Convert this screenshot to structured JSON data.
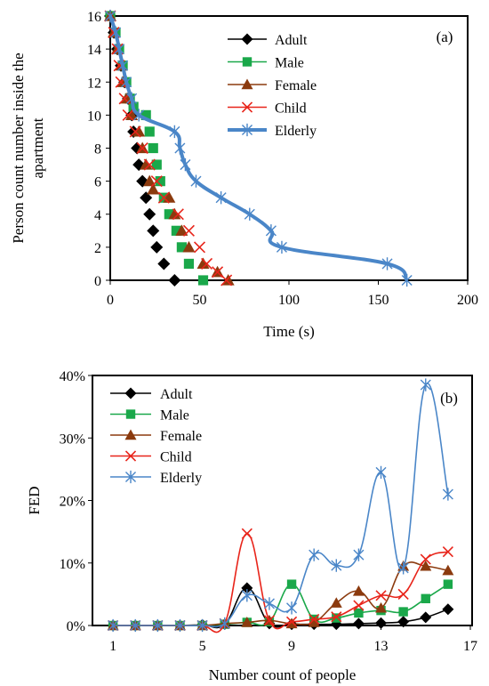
{
  "chart_data": [
    {
      "type": "line",
      "annotation": "(a)",
      "title": "",
      "xlabel": "Time (s)",
      "ylabel_lines": [
        "Person count number inside the",
        "apartment"
      ],
      "xlim": [
        0,
        200
      ],
      "ylim": [
        0,
        16
      ],
      "xticks": [
        0,
        50,
        100,
        150,
        200
      ],
      "yticks": [
        0,
        2,
        4,
        6,
        8,
        10,
        12,
        14,
        16
      ],
      "grid": false,
      "legend_position": "top-center",
      "series": [
        {
          "name": "Adult",
          "color": "#000000",
          "marker": "diamond",
          "line": false,
          "points": [
            [
              0,
              16
            ],
            [
              2,
              15
            ],
            [
              4,
              14
            ],
            [
              6,
              13
            ],
            [
              8,
              12
            ],
            [
              10,
              11
            ],
            [
              12,
              10
            ],
            [
              13,
              9
            ],
            [
              15,
              8
            ],
            [
              16,
              7
            ],
            [
              18,
              6
            ],
            [
              20,
              5
            ],
            [
              22,
              4
            ],
            [
              24,
              3
            ],
            [
              26,
              2
            ],
            [
              30,
              1
            ],
            [
              36,
              0
            ]
          ]
        },
        {
          "name": "Male",
          "color": "#1aa84a",
          "marker": "square",
          "line": false,
          "points": [
            [
              0,
              16
            ],
            [
              3,
              15
            ],
            [
              5,
              14
            ],
            [
              7,
              13
            ],
            [
              9,
              12
            ],
            [
              11,
              11
            ],
            [
              13,
              10.5
            ],
            [
              20,
              10
            ],
            [
              22,
              9
            ],
            [
              24,
              8
            ],
            [
              26,
              7
            ],
            [
              28,
              6
            ],
            [
              30,
              5
            ],
            [
              33,
              4
            ],
            [
              37,
              3
            ],
            [
              40,
              2
            ],
            [
              44,
              1
            ],
            [
              52,
              0
            ]
          ]
        },
        {
          "name": "Female",
          "color": "#8b3a0e",
          "marker": "triangle",
          "line": false,
          "points": [
            [
              0,
              16
            ],
            [
              2,
              15
            ],
            [
              4,
              14
            ],
            [
              6,
              13
            ],
            [
              7,
              12
            ],
            [
              9,
              11
            ],
            [
              12,
              10
            ],
            [
              16,
              9
            ],
            [
              18,
              8
            ],
            [
              20,
              7
            ],
            [
              22,
              6
            ],
            [
              24,
              5.5
            ],
            [
              33,
              5
            ],
            [
              36,
              4
            ],
            [
              40,
              3
            ],
            [
              44,
              2
            ],
            [
              52,
              1
            ],
            [
              60,
              0.5
            ],
            [
              66,
              0
            ]
          ]
        },
        {
          "name": "Child",
          "color": "#e8241a",
          "marker": "x",
          "line": false,
          "points": [
            [
              0,
              16
            ],
            [
              2,
              15
            ],
            [
              4,
              14
            ],
            [
              5,
              13
            ],
            [
              6,
              12
            ],
            [
              8,
              11
            ],
            [
              10,
              10
            ],
            [
              14,
              9
            ],
            [
              18,
              8
            ],
            [
              22,
              7
            ],
            [
              26,
              6
            ],
            [
              30,
              5
            ],
            [
              38,
              4
            ],
            [
              44,
              3
            ],
            [
              50,
              2
            ],
            [
              54,
              1
            ],
            [
              60,
              0.5
            ],
            [
              65,
              0
            ]
          ]
        },
        {
          "name": "Elderly",
          "color": "#4a86c8",
          "marker": "asterisk",
          "line": true,
          "points": [
            [
              0,
              16
            ],
            [
              3,
              15
            ],
            [
              5,
              14
            ],
            [
              7,
              13
            ],
            [
              9,
              12
            ],
            [
              12,
              11
            ],
            [
              16,
              10
            ],
            [
              36,
              9
            ],
            [
              39,
              8
            ],
            [
              42,
              7
            ],
            [
              48,
              6
            ],
            [
              62,
              5
            ],
            [
              78,
              4
            ],
            [
              90,
              3
            ],
            [
              96,
              2
            ],
            [
              155,
              1
            ],
            [
              166,
              0
            ]
          ]
        }
      ]
    },
    {
      "type": "line",
      "annotation": "(b)",
      "title": "",
      "xlabel": "Number count of people",
      "ylabel": "FED",
      "xlim": [
        0,
        17
      ],
      "ylim": [
        0,
        40
      ],
      "xticks": [
        1,
        5,
        9,
        13,
        17
      ],
      "yticks": [
        0,
        10,
        20,
        30,
        40
      ],
      "ytick_labels": [
        "0%",
        "10%",
        "20%",
        "30%",
        "40%"
      ],
      "grid": false,
      "legend_position": "top-left",
      "categories": [
        1,
        2,
        3,
        4,
        5,
        6,
        7,
        8,
        9,
        10,
        11,
        12,
        13,
        14,
        15,
        16
      ],
      "series": [
        {
          "name": "Adult",
          "color": "#000000",
          "marker": "diamond",
          "values": [
            0,
            0,
            0,
            0,
            0.1,
            0.2,
            6.0,
            0.3,
            0.2,
            0.2,
            0.2,
            0.3,
            0.4,
            0.6,
            1.3,
            2.6
          ]
        },
        {
          "name": "Male",
          "color": "#1aa84a",
          "marker": "square",
          "values": [
            0,
            0,
            0,
            0,
            0,
            0.2,
            0.5,
            0.6,
            6.6,
            1.0,
            1.2,
            2.0,
            2.4,
            2.2,
            4.3,
            6.6
          ]
        },
        {
          "name": "Female",
          "color": "#8b3a0e",
          "marker": "triangle",
          "values": [
            0,
            0,
            0,
            0,
            0,
            0.3,
            0.5,
            0.8,
            0.3,
            0.5,
            3.6,
            5.5,
            2.8,
            9.5,
            9.5,
            8.8
          ]
        },
        {
          "name": "Child",
          "color": "#e8241a",
          "marker": "x",
          "values": [
            0,
            0,
            0,
            0,
            0,
            0.3,
            14.7,
            0.8,
            0.6,
            1.0,
            1.4,
            3.2,
            4.8,
            5.0,
            10.6,
            11.8
          ]
        },
        {
          "name": "Elderly",
          "color": "#4a86c8",
          "marker": "asterisk",
          "values": [
            0,
            0,
            0,
            0,
            0,
            0.3,
            4.8,
            3.5,
            2.8,
            11.3,
            9.6,
            11.3,
            24.5,
            9.2,
            38.5,
            21.0
          ]
        }
      ]
    }
  ]
}
